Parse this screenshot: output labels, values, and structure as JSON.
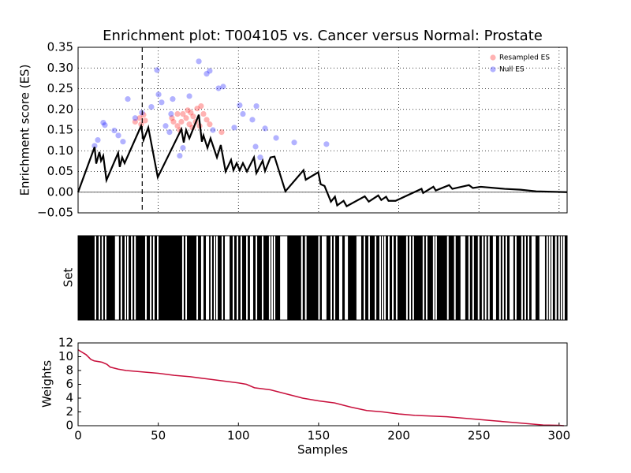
{
  "chart_data": [
    {
      "type": "enrichment",
      "title": "Enrichment plot: T004105 vs. Cancer versus Normal: Prostate",
      "ylabel": "Enrichment score (ES)",
      "xlim": [
        0,
        305
      ],
      "ylim": [
        -0.05,
        0.35
      ],
      "xticks": [
        0,
        50,
        100,
        150,
        200,
        250,
        300
      ],
      "xticklabels": false,
      "yticks": [
        {
          "value": -0.05,
          "label": "−0.05"
        },
        {
          "value": 0,
          "label": "0.00"
        },
        {
          "value": 0.05,
          "label": "0.05"
        },
        {
          "value": 0.1,
          "label": "0.10"
        },
        {
          "value": 0.15,
          "label": "0.15"
        },
        {
          "value": 0.2,
          "label": "0.20"
        },
        {
          "value": 0.25,
          "label": "0.25"
        },
        {
          "value": 0.3,
          "label": "0.30"
        },
        {
          "value": 0.35,
          "label": "0.35"
        }
      ],
      "grid": true,
      "legend": "upper right",
      "hline": 0,
      "vline": 40,
      "line": {
        "color": "#000000",
        "x": [
          0,
          10.3,
          11.3,
          13.3,
          14.3,
          15.7,
          17.7,
          25,
          26,
          27.5,
          29,
          39.3,
          40.8,
          43.8,
          49.7,
          64.4,
          65.9,
          67.4,
          69.4,
          75.3,
          77.2,
          78.2,
          80.7,
          82.6,
          86.6,
          89,
          92,
          95.4,
          96.9,
          98.9,
          100.8,
          102.8,
          105.3,
          109.7,
          111.2,
          115.1,
          116.6,
          120,
          122.5,
          129.3,
          140.6,
          142,
          149.8,
          151.3,
          153.7,
          157.7,
          160.2,
          161.6,
          165.6,
          167.5,
          178.8,
          181.3,
          187.2,
          189.1,
          192.1,
          193.6,
          198,
          214.2,
          215.2,
          221.6,
          223.1,
          231.4,
          233.4,
          243.8,
          246.2,
          251.2,
          266,
          275.9,
          285.7,
          305
        ],
        "values": [
          0,
          0.109,
          0.069,
          0.097,
          0.076,
          0.088,
          0.029,
          0.095,
          0.061,
          0.084,
          0.07,
          0.16,
          0.126,
          0.156,
          0.036,
          0.152,
          0.12,
          0.15,
          0.13,
          0.187,
          0.122,
          0.137,
          0.107,
          0.13,
          0.084,
          0.114,
          0.05,
          0.078,
          0.053,
          0.07,
          0.053,
          0.07,
          0.05,
          0.084,
          0.046,
          0.076,
          0.051,
          0.084,
          0.086,
          0.002,
          0.053,
          0.03,
          0.048,
          0.019,
          0.015,
          -0.023,
          -0.011,
          -0.032,
          -0.021,
          -0.034,
          -0.01,
          -0.023,
          -0.008,
          -0.019,
          -0.011,
          -0.021,
          -0.021,
          0.008,
          -0.002,
          0.013,
          0.004,
          0.017,
          0.008,
          0.017,
          0.01,
          0.013,
          0.008,
          0.006,
          0.002,
          0
        ]
      },
      "series": [
        {
          "name": "Resampled ES",
          "color": "#ff0000",
          "x": [
            35.6,
            38.4,
            40.8,
            41.8,
            39.3,
            58.5,
            62,
            64.4,
            68.4,
            69.4,
            71.8,
            74.3,
            76.7,
            78.2,
            80.2,
            82.1,
            71.3,
            67.4,
            65.4,
            63.4,
            73.3,
            75.8,
            70.3,
            62,
            89.5,
            59.5
          ],
          "values": [
            0.17,
            0.179,
            0.187,
            0.173,
            0.164,
            0.179,
            0.189,
            0.17,
            0.198,
            0.164,
            0.183,
            0.202,
            0.208,
            0.189,
            0.175,
            0.164,
            0.156,
            0.179,
            0.189,
            0.15,
            0.17,
            0.16,
            0.192,
            0.16,
            0.145,
            0.17
          ]
        },
        {
          "name": "Null ES",
          "color": "#0000ff",
          "x": [
            75.3,
            49.2,
            80.2,
            82.1,
            90.5,
            87.6,
            69.4,
            50.2,
            31,
            45.7,
            39.8,
            15.7,
            16.7,
            22.6,
            25.1,
            10.3,
            12.3,
            28,
            57,
            54.6,
            65.4,
            63.4,
            84.1,
            97.4,
            102.8,
            108.7,
            110.7,
            113.6,
            116.6,
            123.5,
            134.8,
            154.9,
            100.8,
            111.2,
            58,
            59,
            52.1,
            35.6
          ],
          "values": [
            0.316,
            0.295,
            0.286,
            0.293,
            0.255,
            0.251,
            0.232,
            0.236,
            0.225,
            0.206,
            0.192,
            0.168,
            0.162,
            0.149,
            0.137,
            0.112,
            0.126,
            0.122,
            0.145,
            0.16,
            0.107,
            0.088,
            0.15,
            0.156,
            0.189,
            0.175,
            0.11,
            0.084,
            0.154,
            0.131,
            0.12,
            0.116,
            0.21,
            0.208,
            0.189,
            0.225,
            0.217,
            0.179
          ]
        }
      ]
    },
    {
      "type": "barcode",
      "ylabel": "Set",
      "xlim": [
        0,
        305
      ],
      "color": "#000000",
      "segments": [
        [
          0,
          10.3
        ],
        [
          11.3,
          12.8
        ],
        [
          13.8,
          14.7
        ],
        [
          15.7,
          16.7
        ],
        [
          17.7,
          23
        ],
        [
          25.5,
          26.5
        ],
        [
          27.5,
          29
        ],
        [
          30,
          30.5
        ],
        [
          31.5,
          33
        ],
        [
          34,
          35
        ],
        [
          36,
          41.8
        ],
        [
          42.8,
          44.8
        ],
        [
          45.8,
          46.7
        ],
        [
          47.7,
          49.2
        ],
        [
          50.2,
          64.9
        ],
        [
          65.9,
          66.9
        ],
        [
          67.9,
          73.8
        ],
        [
          74.8,
          76.7
        ],
        [
          78.2,
          79.7
        ],
        [
          81.7,
          82.6
        ],
        [
          83.6,
          84.6
        ],
        [
          85.6,
          86.1
        ],
        [
          87.1,
          89.5
        ],
        [
          90.5,
          91.5
        ],
        [
          94.5,
          96.4
        ],
        [
          97.4,
          98.9
        ],
        [
          99.9,
          101.3
        ],
        [
          102.3,
          104.8
        ],
        [
          105.8,
          107.2
        ],
        [
          109.2,
          110.7
        ],
        [
          111.7,
          114.6
        ],
        [
          115.6,
          119
        ],
        [
          120,
          120.5
        ],
        [
          121.5,
          122
        ],
        [
          123,
          126
        ],
        [
          130.5,
          139.1
        ],
        [
          140.1,
          141.5
        ],
        [
          142.5,
          149.8
        ],
        [
          150.8,
          152
        ],
        [
          154.9,
          157.4
        ],
        [
          158.4,
          159.4
        ],
        [
          160.4,
          162.8
        ],
        [
          164.8,
          166.3
        ],
        [
          168.3,
          173.6
        ],
        [
          176.6,
          178.1
        ],
        [
          179.1,
          181
        ],
        [
          182,
          185
        ],
        [
          186,
          187.9
        ],
        [
          188.9,
          189.4
        ],
        [
          190.4,
          190.9
        ],
        [
          191.9,
          193.3
        ],
        [
          194.3,
          195.8
        ],
        [
          196.8,
          198.2
        ],
        [
          199.2,
          204.6
        ],
        [
          205.6,
          206.6
        ],
        [
          207.6,
          208.5
        ],
        [
          209.5,
          214.9
        ],
        [
          215.9,
          216.9
        ],
        [
          217.9,
          221.3
        ],
        [
          222.3,
          222.8
        ],
        [
          223.8,
          230.1
        ],
        [
          231.1,
          234.5
        ],
        [
          235.5,
          238.5
        ],
        [
          241.5,
          243.4
        ],
        [
          244.4,
          245.9
        ],
        [
          246.9,
          249.3
        ],
        [
          250.3,
          251.8
        ],
        [
          252.8,
          253.7
        ],
        [
          254.7,
          255.7
        ],
        [
          256.7,
          258.7
        ],
        [
          260.7,
          262.6
        ],
        [
          263.6,
          264.6
        ],
        [
          265.6,
          266.6
        ],
        [
          267.6,
          269.1
        ],
        [
          271.5,
          272.5
        ],
        [
          273.5,
          276.4
        ],
        [
          277.4,
          278.4
        ],
        [
          279.4,
          280.4
        ],
        [
          281.4,
          282.8
        ],
        [
          285.3,
          287.7
        ],
        [
          291.2,
          292.1
        ],
        [
          293.1,
          293.6
        ],
        [
          294.6,
          295.1
        ],
        [
          296.1,
          297.5
        ],
        [
          298.5,
          299.5
        ],
        [
          300.5,
          301
        ],
        [
          302,
          302.5
        ],
        [
          303.5,
          305
        ]
      ]
    },
    {
      "type": "line",
      "ylabel": "Weights",
      "xlabel": "Samples",
      "color": "#c8103c",
      "xlim": [
        0,
        305
      ],
      "ylim": [
        0,
        12
      ],
      "xticks": [
        0,
        50,
        100,
        150,
        200,
        250,
        300
      ],
      "yticks": [
        0,
        2,
        4,
        6,
        8,
        10,
        12
      ],
      "x": [
        0,
        5,
        8,
        10,
        15,
        18,
        20,
        25,
        30,
        40,
        50,
        60,
        70,
        80,
        90,
        100,
        105,
        110,
        120,
        130,
        140,
        150,
        160,
        170,
        180,
        190,
        200,
        210,
        220,
        230,
        240,
        250,
        260,
        270,
        280,
        290,
        300,
        303
      ],
      "values": [
        11.0,
        10.3,
        9.6,
        9.4,
        9.2,
        8.9,
        8.5,
        8.2,
        8.0,
        7.8,
        7.6,
        7.3,
        7.1,
        6.8,
        6.5,
        6.2,
        6.0,
        5.5,
        5.2,
        4.6,
        4.0,
        3.6,
        3.3,
        2.7,
        2.2,
        2.0,
        1.7,
        1.5,
        1.4,
        1.3,
        1.1,
        0.9,
        0.7,
        0.5,
        0.3,
        0.1,
        0.05,
        0
      ]
    }
  ]
}
